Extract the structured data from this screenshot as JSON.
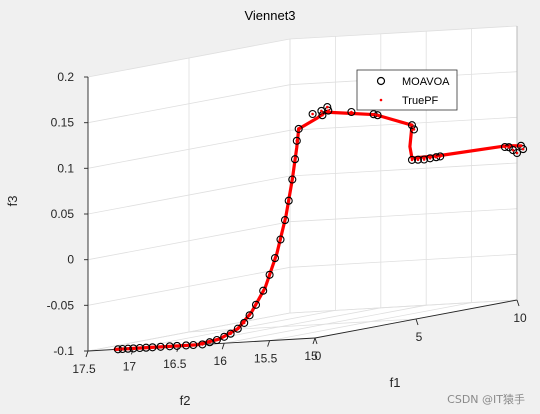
{
  "chart_data": {
    "type": "scatter",
    "title": "Viennet3",
    "xlabel": "f1",
    "ylabel": "f2",
    "zlabel": "f3",
    "xlim": [
      0,
      10
    ],
    "ylim": [
      15,
      17.5
    ],
    "zlim": [
      -0.1,
      0.2
    ],
    "xticks": [
      "0",
      "5",
      "10"
    ],
    "yticks": [
      "15",
      "15.5",
      "16",
      "16.5",
      "17",
      "17.5"
    ],
    "zticks": [
      "-0.1",
      "-0.05",
      "0",
      "0.05",
      "0.1",
      "0.15",
      "0.2"
    ],
    "grid": true,
    "legend": {
      "position": "top-right",
      "entries": [
        "MOAVOA",
        "TruePF"
      ]
    },
    "series": [
      {
        "name": "MOAVOA",
        "marker": "o",
        "color": "#000000",
        "points": [
          [
            0.0,
            17.17,
            -0.1
          ],
          [
            0.0,
            17.12,
            -0.1
          ],
          [
            0.0,
            17.06,
            -0.1
          ],
          [
            0.0,
            17.0,
            -0.1
          ],
          [
            0.0,
            16.93,
            -0.1
          ],
          [
            0.0,
            16.86,
            -0.1
          ],
          [
            0.0,
            16.79,
            -0.1
          ],
          [
            0.0,
            16.7,
            -0.1
          ],
          [
            0.0,
            16.6,
            -0.1
          ],
          [
            0.0,
            16.52,
            -0.1
          ],
          [
            0.0,
            16.42,
            -0.1
          ],
          [
            0.0,
            16.34,
            -0.1
          ],
          [
            0.0,
            16.24,
            -0.1
          ],
          [
            0.0,
            16.16,
            -0.098
          ],
          [
            0.0,
            16.08,
            -0.096
          ],
          [
            0.0,
            16.0,
            -0.093
          ],
          [
            0.0,
            15.93,
            -0.09
          ],
          [
            0.0,
            15.85,
            -0.085
          ],
          [
            0.0,
            15.78,
            -0.079
          ],
          [
            0.0,
            15.72,
            -0.071
          ],
          [
            0.0,
            15.65,
            -0.06
          ],
          [
            0.0,
            15.57,
            -0.045
          ],
          [
            0.0,
            15.5,
            -0.028
          ],
          [
            0.0,
            15.44,
            -0.01
          ],
          [
            0.0,
            15.38,
            0.01
          ],
          [
            0.0,
            15.33,
            0.031
          ],
          [
            0.0,
            15.29,
            0.052
          ],
          [
            0.0,
            15.25,
            0.075
          ],
          [
            0.0,
            15.22,
            0.097
          ],
          [
            0.0,
            15.2,
            0.117
          ],
          [
            0.0,
            15.18,
            0.13
          ],
          [
            0.15,
            15.06,
            0.145
          ],
          [
            0.45,
            15.03,
            0.147
          ],
          [
            0.5,
            15.03,
            0.142
          ],
          [
            0.7,
            15.02,
            0.15
          ],
          [
            0.75,
            15.02,
            0.146
          ],
          [
            1.8,
            15.0,
            0.14
          ],
          [
            2.9,
            15.0,
            0.133
          ],
          [
            3.1,
            15.0,
            0.131
          ],
          [
            4.8,
            15.0,
            0.113
          ],
          [
            4.9,
            15.0,
            0.108
          ],
          [
            4.8,
            15.0,
            0.075
          ],
          [
            5.1,
            15.0,
            0.074
          ],
          [
            5.4,
            15.0,
            0.073
          ],
          [
            5.7,
            15.0,
            0.073
          ],
          [
            6.0,
            15.0,
            0.073
          ],
          [
            6.2,
            15.0,
            0.073
          ],
          [
            9.4,
            15.0,
            0.07
          ],
          [
            9.6,
            15.0,
            0.069
          ],
          [
            9.8,
            15.0,
            0.065
          ],
          [
            10.2,
            15.0,
            0.068
          ],
          [
            10.3,
            15.0,
            0.064
          ],
          [
            10.0,
            15.0,
            0.061
          ]
        ]
      },
      {
        "name": "TruePF",
        "marker": ".",
        "color": "#ff0000",
        "curves": [
          [
            [
              0.0,
              17.2,
              -0.1
            ],
            [
              0.0,
              16.75,
              -0.1
            ],
            [
              0.0,
              16.3,
              -0.1
            ],
            [
              0.0,
              16.05,
              -0.095
            ],
            [
              0.0,
              15.85,
              -0.085
            ],
            [
              0.0,
              15.7,
              -0.068
            ],
            [
              0.0,
              15.55,
              -0.042
            ],
            [
              0.0,
              15.42,
              -0.005
            ],
            [
              0.0,
              15.32,
              0.035
            ],
            [
              0.0,
              15.25,
              0.075
            ],
            [
              0.0,
              15.2,
              0.11
            ],
            [
              0.0,
              15.18,
              0.13
            ]
          ],
          [
            [
              0.0,
              15.18,
              0.13
            ],
            [
              0.25,
              15.03,
              0.14
            ],
            [
              0.6,
              15.02,
              0.145
            ],
            [
              1.5,
              15.0,
              0.14
            ],
            [
              3.0,
              15.0,
              0.132
            ],
            [
              4.8,
              15.0,
              0.113
            ],
            [
              4.7,
              15.0,
              0.09
            ],
            [
              4.8,
              15.0,
              0.077
            ],
            [
              6.2,
              15.0,
              0.074
            ],
            [
              9.5,
              15.0,
              0.071
            ],
            [
              10.2,
              15.0,
              0.068
            ]
          ]
        ]
      }
    ]
  }
}
